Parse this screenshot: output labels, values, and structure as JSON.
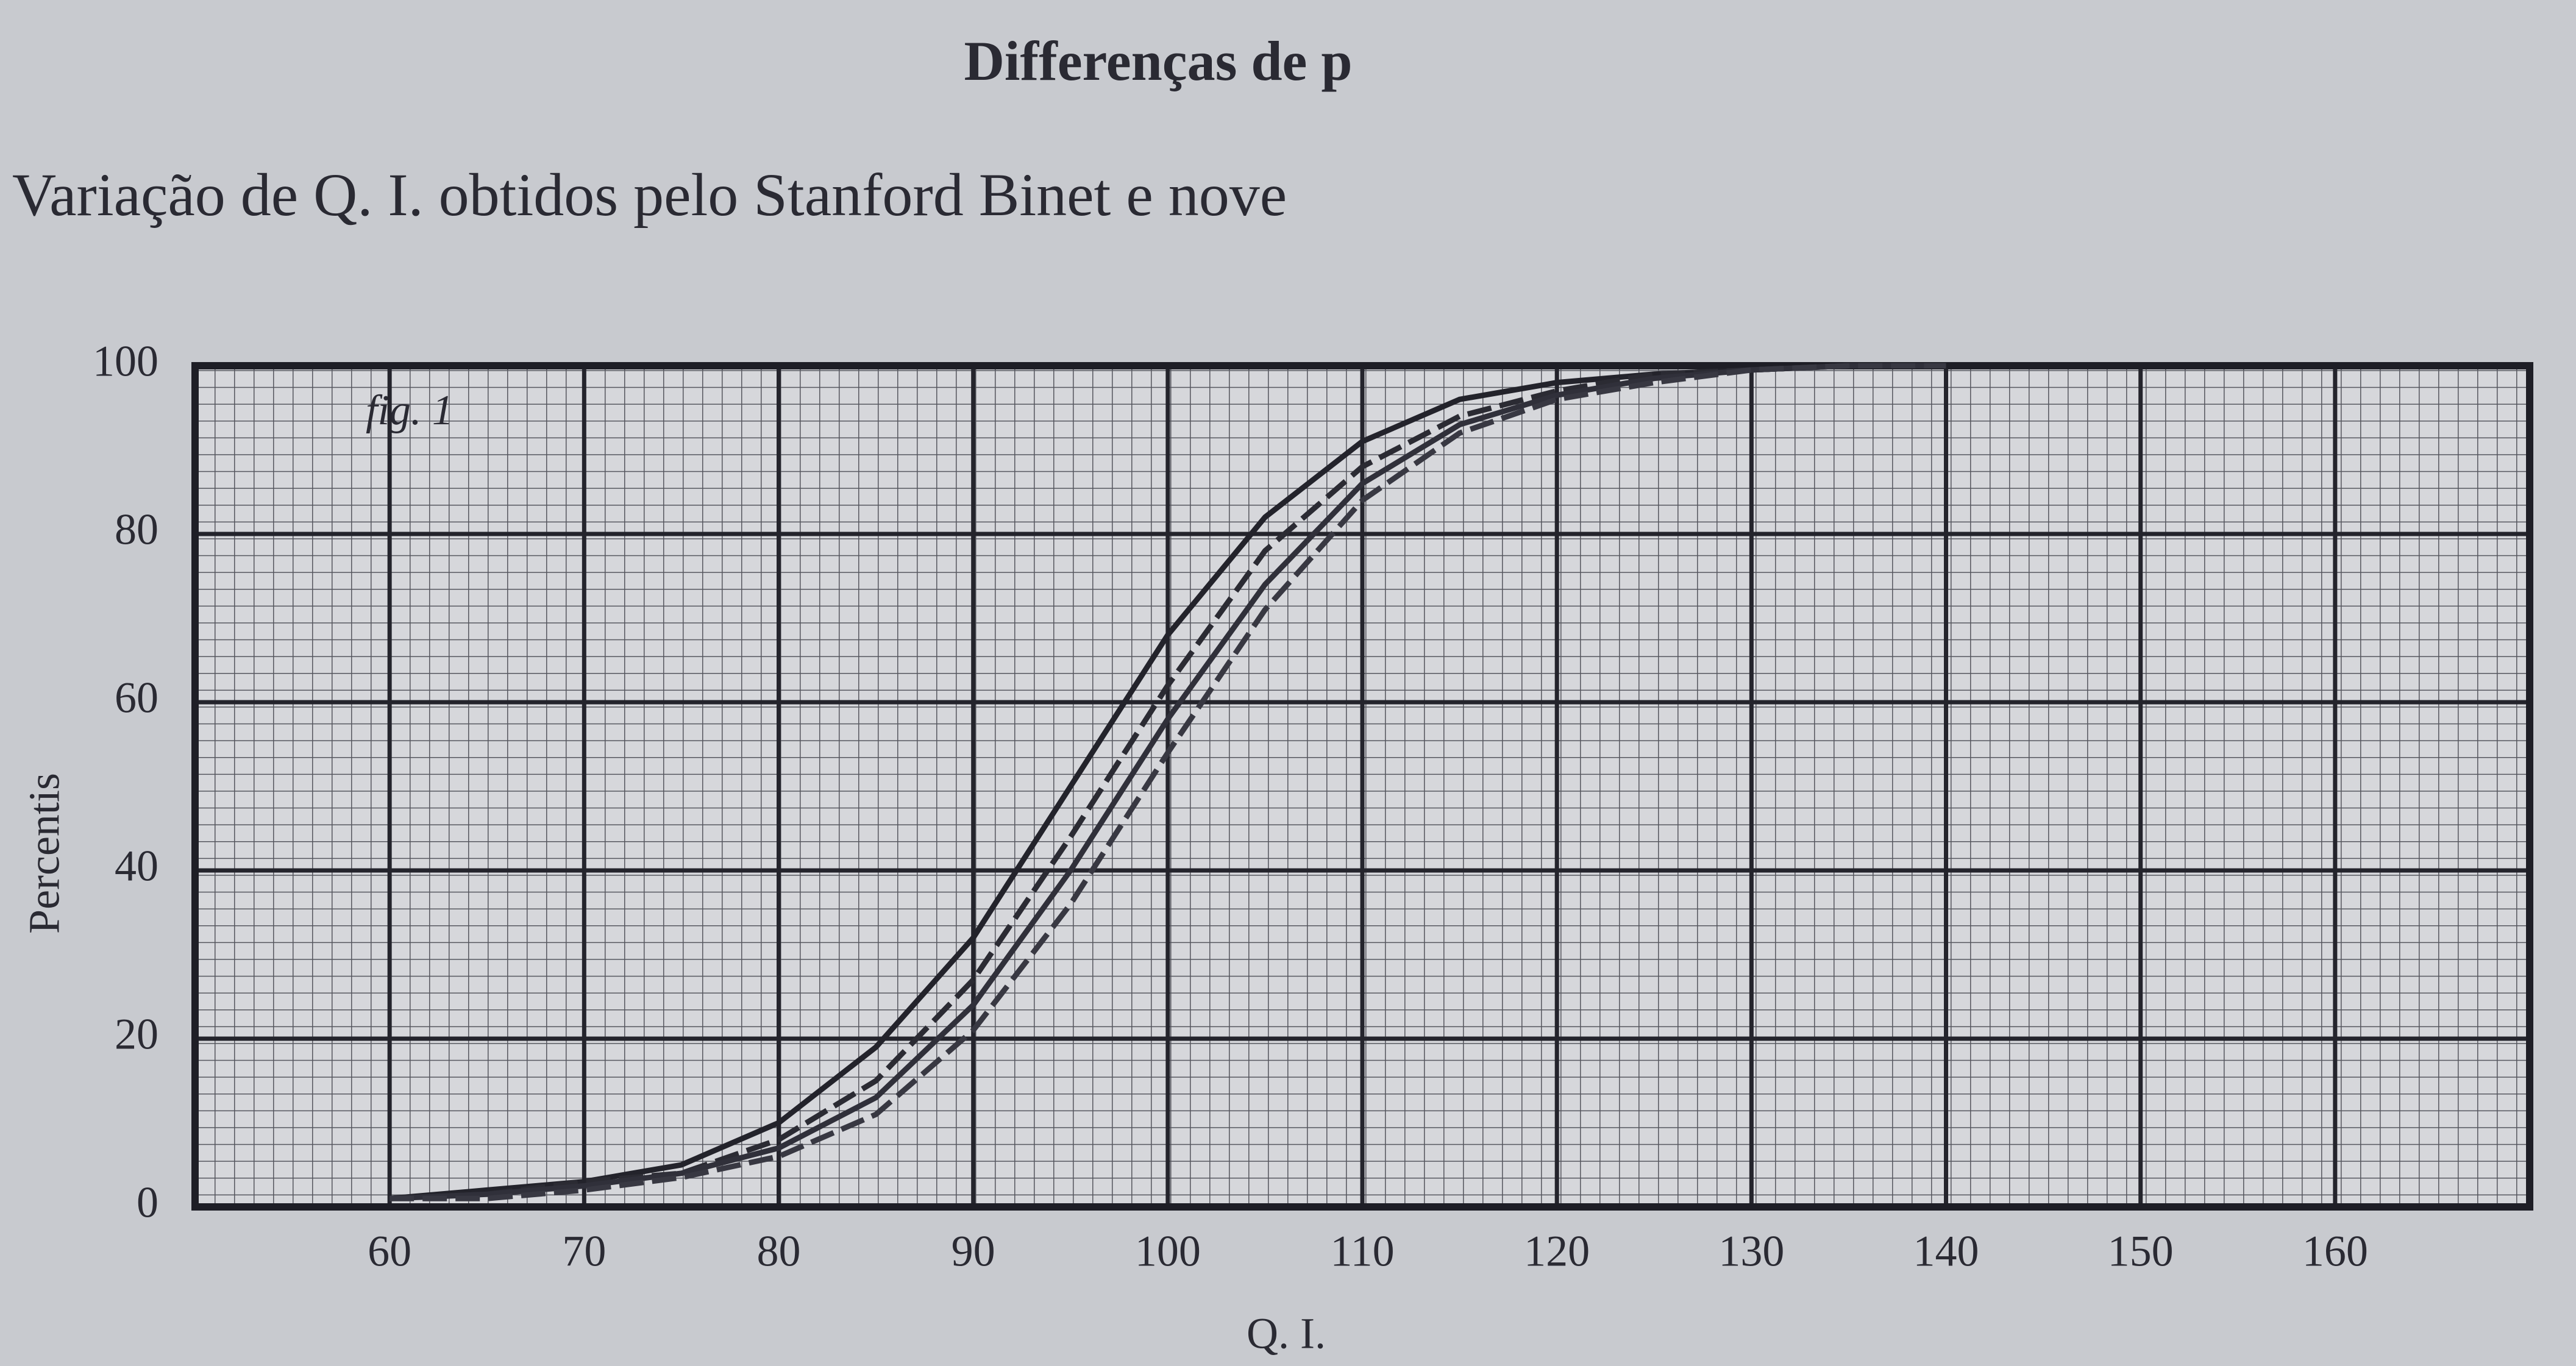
{
  "chart_data": {
    "type": "line",
    "title": "Differenças de p",
    "subtitle": "Variação de Q. I. obtidos pelo Stanford Binet e nove",
    "annotation": "fig. 1",
    "x_label": "Q. I.",
    "y_label": "Percentis",
    "x": [
      60,
      65,
      70,
      75,
      80,
      85,
      90,
      95,
      100,
      105,
      110,
      115,
      120,
      125,
      130,
      135,
      140
    ],
    "series": [
      {
        "color": "#23232b",
        "values": [
          1,
          2,
          3,
          5,
          10,
          19,
          32,
          50,
          68,
          82,
          91,
          96,
          98,
          99,
          99.5,
          100,
          100
        ]
      },
      {
        "color": "#2b2b33",
        "values": [
          1,
          1.5,
          3,
          4,
          8,
          15,
          27,
          44,
          62,
          78,
          88,
          94,
          97,
          99,
          99.5,
          100,
          100
        ]
      },
      {
        "color": "#30303a",
        "values": [
          1,
          1.5,
          2.5,
          4,
          7,
          13,
          24,
          40,
          58,
          74,
          86,
          93,
          96.5,
          98.5,
          99.5,
          100,
          100
        ]
      },
      {
        "color": "#383842",
        "values": [
          1,
          1,
          2,
          3.5,
          6,
          11,
          21,
          36,
          54,
          71,
          84,
          92,
          96,
          98,
          99.5,
          100,
          100
        ]
      }
    ],
    "xlim": [
      50,
      170
    ],
    "ylim": [
      0,
      100
    ],
    "xticks": [
      60,
      70,
      80,
      90,
      100,
      110,
      120,
      130,
      140,
      150,
      160
    ],
    "yticks": [
      0,
      20,
      40,
      60,
      80,
      100
    ],
    "grid": true
  }
}
